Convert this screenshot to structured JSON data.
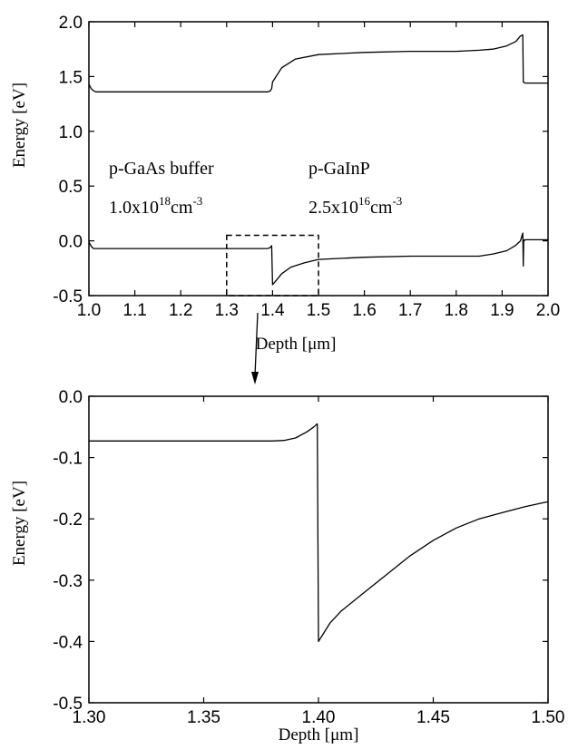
{
  "chart_data": [
    {
      "type": "line",
      "xlabel": "Depth [μm]",
      "ylabel": "Energy [eV]",
      "xlim": [
        1.0,
        2.0
      ],
      "ylim": [
        -0.5,
        2.0
      ],
      "xticks": [
        "1.0",
        "1.1",
        "1.2",
        "1.3",
        "1.4",
        "1.5",
        "1.6",
        "1.7",
        "1.8",
        "1.9",
        "2.0"
      ],
      "yticks": [
        "-0.5",
        "0.0",
        "0.5",
        "1.0",
        "1.5",
        "2.0"
      ],
      "annotations": [
        {
          "text": "p-GaAs buffer"
        },
        {
          "mantissa": "1.0x10",
          "exponent": "18",
          "unit": "cm",
          "unit_exp": "-3"
        },
        {
          "text": "p-GaInP"
        },
        {
          "mantissa": "2.5x10",
          "exponent": "16",
          "unit": "cm",
          "unit_exp": "-3"
        }
      ],
      "zoom_box": {
        "x": [
          1.3,
          1.5
        ],
        "y": [
          -0.5,
          0.05
        ]
      },
      "series": [
        {
          "x": [
            1.0,
            1.005,
            1.01,
            1.015,
            1.02,
            1.1,
            1.2,
            1.3,
            1.385,
            1.39,
            1.395,
            1.398,
            1.4,
            1.42,
            1.45,
            1.5,
            1.6,
            1.7,
            1.8,
            1.85,
            1.88,
            1.91,
            1.93,
            1.94,
            1.945,
            1.946,
            1.95,
            2.0
          ],
          "y": [
            1.43,
            1.39,
            1.37,
            1.36,
            1.36,
            1.36,
            1.36,
            1.36,
            1.36,
            1.36,
            1.37,
            1.39,
            1.45,
            1.58,
            1.66,
            1.7,
            1.72,
            1.73,
            1.73,
            1.74,
            1.75,
            1.78,
            1.82,
            1.87,
            1.88,
            1.45,
            1.44,
            1.44
          ]
        },
        {
          "x": [
            1.0,
            1.005,
            1.01,
            1.015,
            1.02,
            1.1,
            1.2,
            1.3,
            1.385,
            1.39,
            1.395,
            1.398,
            1.4,
            1.41,
            1.42,
            1.44,
            1.47,
            1.5,
            1.55,
            1.6,
            1.7,
            1.8,
            1.85,
            1.88,
            1.91,
            1.93,
            1.94,
            1.945,
            1.946,
            1.947,
            1.948,
            1.95,
            2.0
          ],
          "y": [
            -0.01,
            -0.05,
            -0.07,
            -0.07,
            -0.07,
            -0.07,
            -0.07,
            -0.07,
            -0.07,
            -0.07,
            -0.06,
            -0.045,
            -0.4,
            -0.35,
            -0.3,
            -0.24,
            -0.2,
            -0.17,
            -0.16,
            -0.15,
            -0.14,
            -0.14,
            -0.14,
            -0.12,
            -0.09,
            -0.04,
            0.0,
            0.07,
            -0.23,
            0.01,
            0.0,
            0.01,
            0.01
          ]
        }
      ]
    },
    {
      "type": "line",
      "xlabel": "Depth [μm]",
      "ylabel": "Energy [eV]",
      "xlim": [
        1.3,
        1.5
      ],
      "ylim": [
        -0.5,
        0.0
      ],
      "xticks": [
        "1.30",
        "1.35",
        "1.40",
        "1.45",
        "1.50"
      ],
      "yticks": [
        "-0.5",
        "-0.4",
        "-0.3",
        "-0.2",
        "-0.1",
        "0.0"
      ],
      "series": [
        {
          "x": [
            1.3,
            1.32,
            1.34,
            1.36,
            1.38,
            1.385,
            1.39,
            1.395,
            1.398,
            1.3995,
            1.4,
            1.405,
            1.41,
            1.42,
            1.43,
            1.44,
            1.45,
            1.46,
            1.47,
            1.48,
            1.49,
            1.5
          ],
          "y": [
            -0.073,
            -0.073,
            -0.073,
            -0.073,
            -0.073,
            -0.072,
            -0.068,
            -0.058,
            -0.05,
            -0.045,
            -0.4,
            -0.37,
            -0.35,
            -0.32,
            -0.29,
            -0.26,
            -0.235,
            -0.215,
            -0.2,
            -0.19,
            -0.18,
            -0.172
          ]
        }
      ]
    }
  ]
}
